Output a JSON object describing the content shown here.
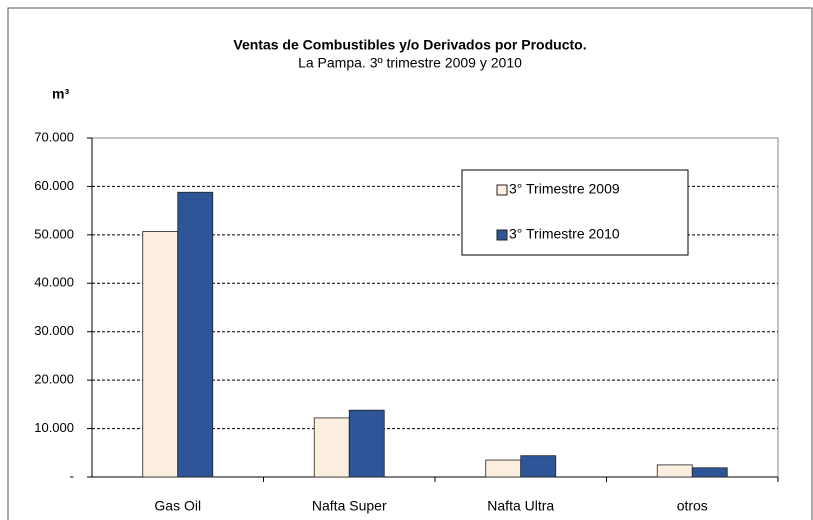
{
  "chart_data": {
    "type": "bar",
    "title": "Ventas de Combustibles y/o Derivados por Producto.",
    "subtitle": "La Pampa. 3º trimestre 2009 y 2010",
    "y_label": "m³",
    "categories": [
      "Gas Oil",
      "Nafta Super",
      "Nafta Ultra",
      "otros"
    ],
    "series": [
      {
        "name": "3° Trimestre 2009",
        "color": "#fdefe0",
        "values": [
          50700,
          12200,
          3500,
          2500
        ]
      },
      {
        "name": "3° Trimestre 2010",
        "color": "#2e5597",
        "values": [
          58800,
          13800,
          4400,
          1900
        ]
      }
    ],
    "ylim": [
      0,
      70000
    ],
    "yticks": [
      {
        "value": 0,
        "label": "-"
      },
      {
        "value": 10000,
        "label": "10.000"
      },
      {
        "value": 20000,
        "label": "20.000"
      },
      {
        "value": 30000,
        "label": "30.000"
      },
      {
        "value": 40000,
        "label": "40.000"
      },
      {
        "value": 50000,
        "label": "50.000"
      },
      {
        "value": 60000,
        "label": "60.000"
      },
      {
        "value": 70000,
        "label": "70.000"
      }
    ],
    "grid": true
  }
}
